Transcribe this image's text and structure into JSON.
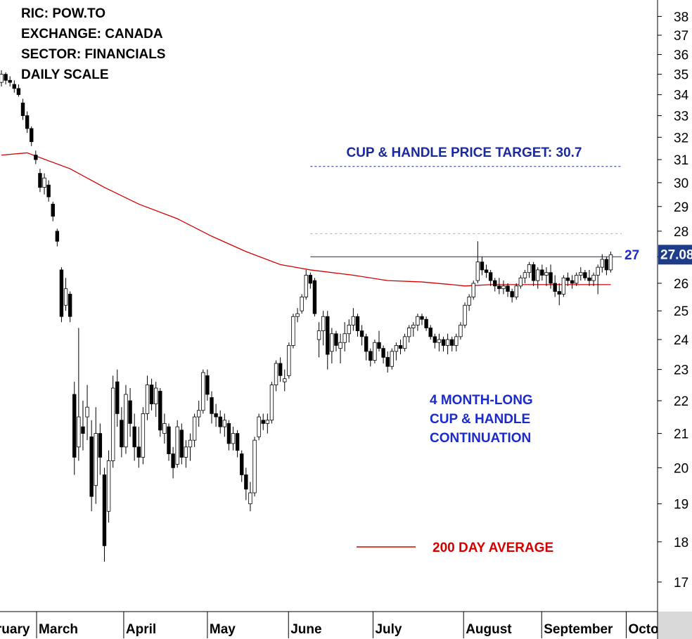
{
  "chart_data": {
    "type": "candlestick",
    "info": [
      "RIC: POW.TO",
      "EXCHANGE: CANADA",
      "SECTOR: FINANCIALS",
      "DAILY SCALE"
    ],
    "log_scale": true,
    "grid": false,
    "ylim": [
      16.3,
      38.9
    ],
    "yticks": [
      17,
      18,
      19,
      20,
      21,
      22,
      23,
      24,
      25,
      26,
      27,
      28,
      29,
      30,
      31,
      32,
      33,
      34,
      35,
      36,
      37,
      38
    ],
    "xlim": [
      -0.33,
      152.9
    ],
    "xticks": [
      {
        "value": -7.2,
        "label": "February"
      },
      {
        "value": 8.2,
        "label": "March"
      },
      {
        "value": 28.5,
        "label": "April"
      },
      {
        "value": 48,
        "label": "May"
      },
      {
        "value": 66.9,
        "label": "June"
      },
      {
        "value": 86.6,
        "label": "July"
      },
      {
        "value": 107.7,
        "label": "August"
      },
      {
        "value": 125.9,
        "label": "September"
      },
      {
        "value": 145.6,
        "label": "October"
      }
    ],
    "up_color": "#ffffff",
    "down_color": "#000000",
    "ohlc": [
      [
        34.6,
        35.2,
        34.4,
        35.0
      ],
      [
        35.0,
        35.1,
        34.5,
        34.7
      ],
      [
        34.7,
        34.9,
        34.4,
        34.6
      ],
      [
        34.5,
        34.7,
        34.1,
        34.3
      ],
      [
        34.3,
        34.5,
        33.9,
        34.0
      ],
      [
        33.6,
        33.8,
        32.8,
        33.0
      ],
      [
        33.0,
        33.2,
        32.2,
        32.4
      ],
      [
        32.4,
        32.5,
        31.6,
        31.8
      ],
      [
        31.2,
        31.4,
        30.8,
        31.0
      ],
      [
        30.4,
        30.6,
        29.6,
        29.8
      ],
      [
        29.8,
        30.4,
        29.5,
        30.2
      ],
      [
        29.9,
        30.1,
        29.2,
        29.4
      ],
      [
        29.1,
        29.2,
        28.4,
        28.6
      ],
      [
        28.0,
        28.1,
        27.4,
        27.6
      ],
      [
        26.5,
        26.6,
        24.6,
        24.8
      ],
      [
        25.2,
        26.2,
        25.0,
        25.8
      ],
      [
        25.6,
        25.7,
        24.6,
        24.8
      ],
      [
        22.2,
        22.6,
        19.8,
        20.3
      ],
      [
        20.6,
        24.4,
        20.2,
        21.5
      ],
      [
        21.2,
        22.0,
        20.5,
        21.0
      ],
      [
        21.5,
        22.5,
        20.8,
        21.8
      ],
      [
        20.9,
        21.4,
        18.8,
        19.2
      ],
      [
        19.5,
        21.8,
        19.0,
        21.0
      ],
      [
        21.0,
        21.3,
        19.8,
        20.3
      ],
      [
        19.8,
        20.0,
        17.5,
        17.9
      ],
      [
        18.8,
        20.5,
        18.5,
        20.2
      ],
      [
        20.2,
        22.8,
        20.0,
        22.4
      ],
      [
        22.6,
        23.0,
        21.2,
        21.6
      ],
      [
        21.4,
        21.8,
        20.3,
        20.6
      ],
      [
        20.6,
        22.5,
        20.4,
        22.2
      ],
      [
        22.0,
        22.4,
        20.9,
        21.3
      ],
      [
        21.2,
        21.6,
        20.2,
        20.6
      ],
      [
        20.6,
        21.2,
        20.0,
        20.3
      ],
      [
        20.3,
        21.8,
        20.1,
        21.6
      ],
      [
        21.6,
        22.8,
        21.4,
        22.5
      ],
      [
        22.5,
        22.7,
        21.7,
        21.9
      ],
      [
        21.9,
        22.6,
        21.5,
        22.4
      ],
      [
        22.3,
        22.4,
        20.9,
        21.1
      ],
      [
        21.0,
        21.6,
        20.7,
        21.3
      ],
      [
        21.2,
        21.3,
        20.2,
        20.4
      ],
      [
        20.4,
        20.6,
        19.7,
        20.0
      ],
      [
        20.1,
        21.4,
        20.0,
        21.2
      ],
      [
        21.1,
        21.3,
        20.1,
        20.3
      ],
      [
        20.3,
        20.8,
        20.0,
        20.6
      ],
      [
        20.6,
        21.0,
        20.2,
        20.8
      ],
      [
        20.8,
        21.6,
        20.6,
        21.5
      ],
      [
        21.5,
        22.0,
        21.2,
        21.7
      ],
      [
        21.7,
        23.0,
        21.6,
        22.9
      ],
      [
        22.8,
        23.0,
        22.0,
        22.2
      ],
      [
        22.1,
        22.3,
        21.3,
        21.6
      ],
      [
        21.6,
        21.9,
        21.2,
        21.5
      ],
      [
        21.5,
        21.7,
        21.0,
        21.2
      ],
      [
        21.2,
        21.6,
        20.9,
        21.4
      ],
      [
        21.3,
        21.4,
        20.5,
        20.7
      ],
      [
        20.7,
        21.2,
        20.5,
        21.0
      ],
      [
        21.0,
        21.1,
        20.3,
        20.5
      ],
      [
        20.4,
        20.5,
        19.6,
        19.8
      ],
      [
        19.8,
        20.0,
        19.1,
        19.4
      ],
      [
        19.0,
        19.6,
        18.8,
        19.3
      ],
      [
        19.3,
        20.9,
        19.2,
        20.8
      ],
      [
        20.9,
        21.6,
        20.8,
        21.5
      ],
      [
        21.4,
        21.6,
        21.1,
        21.3
      ],
      [
        21.3,
        21.6,
        21.0,
        21.4
      ],
      [
        21.4,
        22.6,
        21.3,
        22.5
      ],
      [
        22.5,
        23.3,
        22.3,
        23.2
      ],
      [
        23.2,
        23.4,
        22.6,
        22.8
      ],
      [
        22.6,
        23.0,
        22.3,
        22.7
      ],
      [
        22.8,
        23.9,
        22.7,
        23.8
      ],
      [
        23.8,
        24.9,
        23.7,
        24.8
      ],
      [
        24.8,
        25.1,
        24.6,
        24.9
      ],
      [
        25.0,
        25.6,
        24.9,
        25.5
      ],
      [
        25.5,
        26.5,
        25.4,
        26.3
      ],
      [
        26.3,
        26.4,
        25.8,
        26.0
      ],
      [
        26.1,
        26.2,
        24.8,
        24.9
      ],
      [
        24.0,
        24.6,
        23.4,
        24.3
      ],
      [
        24.3,
        25.0,
        23.8,
        24.8
      ],
      [
        24.8,
        25.0,
        23.0,
        23.5
      ],
      [
        23.6,
        24.4,
        23.2,
        24.2
      ],
      [
        24.2,
        24.3,
        23.6,
        23.8
      ],
      [
        23.7,
        24.2,
        23.2,
        23.9
      ],
      [
        23.9,
        24.6,
        23.6,
        24.2
      ],
      [
        24.2,
        24.7,
        23.9,
        24.5
      ],
      [
        24.5,
        25.1,
        24.3,
        24.8
      ],
      [
        24.8,
        24.9,
        24.1,
        24.3
      ],
      [
        24.3,
        24.5,
        23.8,
        24.1
      ],
      [
        24.1,
        24.2,
        23.3,
        23.6
      ],
      [
        23.6,
        23.7,
        23.1,
        23.3
      ],
      [
        23.3,
        24.0,
        23.2,
        23.9
      ],
      [
        23.9,
        24.3,
        23.6,
        23.7
      ],
      [
        23.7,
        23.8,
        23.2,
        23.4
      ],
      [
        23.4,
        23.6,
        22.9,
        23.1
      ],
      [
        23.1,
        23.7,
        23.0,
        23.6
      ],
      [
        23.6,
        23.9,
        23.3,
        23.8
      ],
      [
        23.8,
        24.0,
        23.5,
        23.7
      ],
      [
        23.7,
        24.2,
        23.6,
        24.1
      ],
      [
        24.1,
        24.5,
        23.9,
        24.4
      ],
      [
        24.4,
        24.6,
        24.1,
        24.5
      ],
      [
        24.5,
        24.9,
        24.3,
        24.8
      ],
      [
        24.8,
        24.9,
        24.5,
        24.7
      ],
      [
        24.7,
        24.8,
        24.3,
        24.4
      ],
      [
        24.4,
        24.5,
        24.0,
        24.1
      ],
      [
        24.1,
        24.2,
        23.7,
        23.9
      ],
      [
        23.9,
        24.2,
        23.6,
        24.0
      ],
      [
        24.0,
        24.1,
        23.6,
        23.8
      ],
      [
        23.8,
        24.2,
        23.5,
        24.0
      ],
      [
        24.0,
        24.1,
        23.6,
        23.8
      ],
      [
        23.8,
        24.2,
        23.6,
        24.1
      ],
      [
        24.1,
        24.6,
        24.0,
        24.5
      ],
      [
        24.5,
        25.3,
        24.4,
        25.2
      ],
      [
        25.2,
        25.6,
        25.0,
        25.5
      ],
      [
        25.5,
        26.1,
        25.4,
        26.0
      ],
      [
        26.1,
        27.6,
        26.0,
        26.8
      ],
      [
        26.8,
        27.0,
        26.3,
        26.5
      ],
      [
        26.5,
        26.7,
        26.2,
        26.4
      ],
      [
        26.4,
        26.5,
        25.9,
        26.1
      ],
      [
        26.1,
        26.2,
        25.7,
        25.9
      ],
      [
        25.9,
        26.2,
        25.6,
        25.8
      ],
      [
        25.8,
        26.1,
        25.6,
        25.9
      ],
      [
        25.9,
        26.0,
        25.5,
        25.7
      ],
      [
        25.7,
        25.8,
        25.3,
        25.5
      ],
      [
        25.5,
        26.0,
        25.4,
        25.9
      ],
      [
        25.9,
        26.3,
        25.8,
        26.2
      ],
      [
        26.2,
        26.5,
        26.0,
        26.4
      ],
      [
        26.4,
        26.8,
        26.2,
        26.7
      ],
      [
        26.7,
        26.8,
        25.9,
        26.1
      ],
      [
        26.1,
        26.6,
        25.8,
        26.5
      ],
      [
        26.5,
        26.7,
        26.1,
        26.3
      ],
      [
        26.3,
        26.6,
        25.9,
        26.4
      ],
      [
        26.4,
        26.7,
        25.8,
        26.0
      ],
      [
        26.0,
        26.3,
        25.5,
        25.7
      ],
      [
        25.7,
        26.0,
        25.2,
        25.6
      ],
      [
        25.6,
        26.3,
        25.5,
        26.2
      ],
      [
        26.2,
        26.4,
        25.9,
        26.1
      ],
      [
        26.1,
        26.3,
        25.8,
        26.0
      ],
      [
        26.0,
        26.4,
        25.9,
        26.3
      ],
      [
        26.3,
        26.6,
        26.1,
        26.4
      ],
      [
        26.4,
        26.5,
        26.1,
        26.2
      ],
      [
        26.2,
        26.5,
        25.9,
        26.1
      ],
      [
        26.1,
        26.4,
        25.9,
        26.3
      ],
      [
        26.3,
        26.7,
        25.6,
        26.6
      ],
      [
        26.6,
        27.1,
        26.4,
        26.9
      ],
      [
        26.9,
        27.0,
        26.3,
        26.5
      ],
      [
        26.5,
        27.2,
        26.4,
        27.08
      ]
    ],
    "moving_average": {
      "name": "200 DAY AVERAGE",
      "color": "#d40000",
      "x": [
        0,
        6,
        16,
        24,
        32,
        41,
        49,
        57,
        65,
        72,
        82,
        90,
        98,
        105,
        108,
        114,
        124,
        131,
        142
      ],
      "values": [
        31.2,
        31.3,
        30.6,
        29.8,
        29.1,
        28.5,
        27.8,
        27.2,
        26.7,
        26.5,
        26.3,
        26.1,
        26.05,
        25.95,
        25.9,
        25.95,
        25.95,
        25.95,
        25.95
      ]
    },
    "levels": [
      {
        "value": 27,
        "label": "27",
        "color": "#1a2a6c",
        "style": "solid"
      },
      {
        "value": 30.7,
        "label": "CUP & HANDLE PRICE TARGET: 30.7",
        "color": "#1a2a9c",
        "style": "dashed"
      },
      {
        "value": 27.9,
        "color": "#aaaaaa",
        "style": "dotted"
      }
    ],
    "level_start": 72,
    "last_price": 27.08,
    "annotation": [
      "4 MONTH-LONG",
      "CUP & HANDLE",
      "CONTINUATION"
    ]
  }
}
